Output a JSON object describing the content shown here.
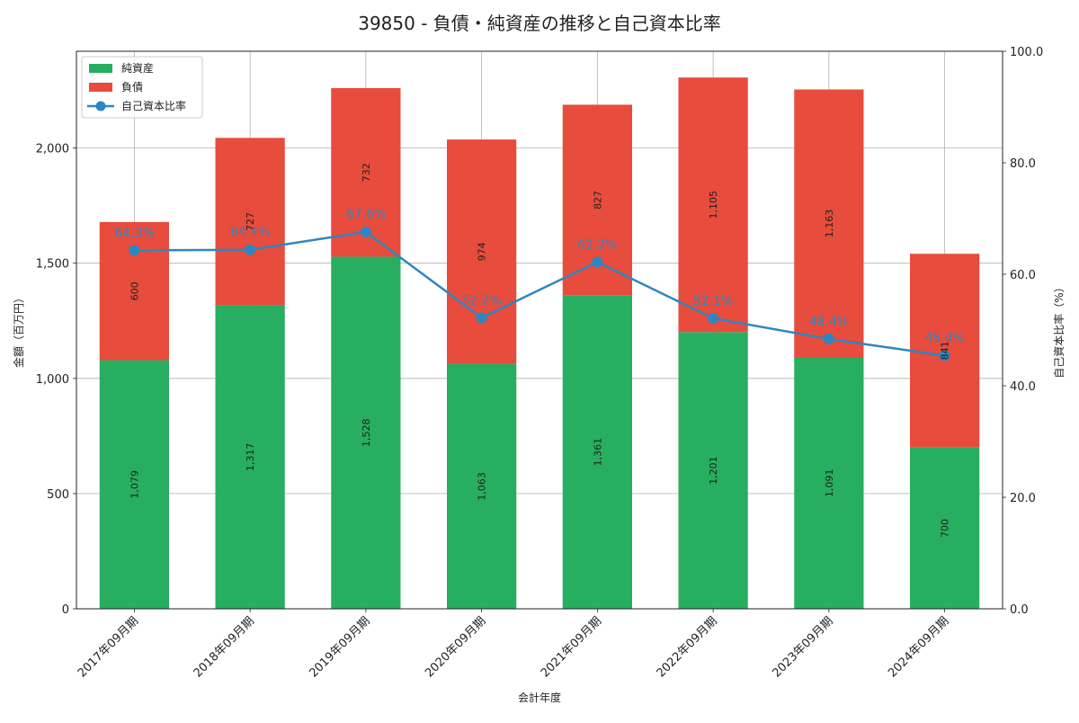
{
  "chart_data": {
    "type": "bar",
    "stacked": true,
    "title": "39850 - 負債・純資産の推移と自己資本比率",
    "xlabel": "会計年度",
    "ylabel": "金額（百万円）",
    "y2label": "自己資本比率（%）",
    "ylim": [
      0,
      2420
    ],
    "y2lim": [
      0,
      100
    ],
    "yticks": [
      "0",
      "500",
      "1,000",
      "1,500",
      "2,000"
    ],
    "yticks_values": [
      0,
      500,
      1000,
      1500,
      2000
    ],
    "y2ticks": [
      "0.0",
      "20.0",
      "40.0",
      "60.0",
      "80.0",
      "100.0"
    ],
    "y2ticks_values": [
      0,
      20,
      40,
      60,
      80,
      100
    ],
    "grid": true,
    "legend_position": "top-left",
    "categories": [
      "2017年09月期",
      "2018年09月期",
      "2019年09月期",
      "2020年09月期",
      "2021年09月期",
      "2022年09月期",
      "2023年09月期",
      "2024年09月期"
    ],
    "series": [
      {
        "name": "純資産",
        "kind": "bar",
        "color": "#27ae60",
        "values": [
          1079,
          1317,
          1528,
          1063,
          1361,
          1201,
          1091,
          700
        ],
        "labels": [
          "1,079",
          "1,317",
          "1,528",
          "1,063",
          "1,361",
          "1,201",
          "1,091",
          "700"
        ]
      },
      {
        "name": "負債",
        "kind": "bar",
        "color": "#e74c3c",
        "values": [
          600,
          727,
          732,
          974,
          827,
          1105,
          1163,
          841
        ],
        "labels": [
          "600",
          "727",
          "732",
          "974",
          "827",
          "1,105",
          "1,163",
          "841"
        ]
      },
      {
        "name": "自己資本比率",
        "kind": "line",
        "axis": "right",
        "color": "#2e86c1",
        "values": [
          64.3,
          64.4,
          67.6,
          52.2,
          62.2,
          52.1,
          48.4,
          45.4
        ],
        "labels": [
          "64.3%",
          "64.4%",
          "67.6%",
          "52.2%",
          "62.2%",
          "52.1%",
          "48.4%",
          "45.4%"
        ]
      }
    ]
  }
}
